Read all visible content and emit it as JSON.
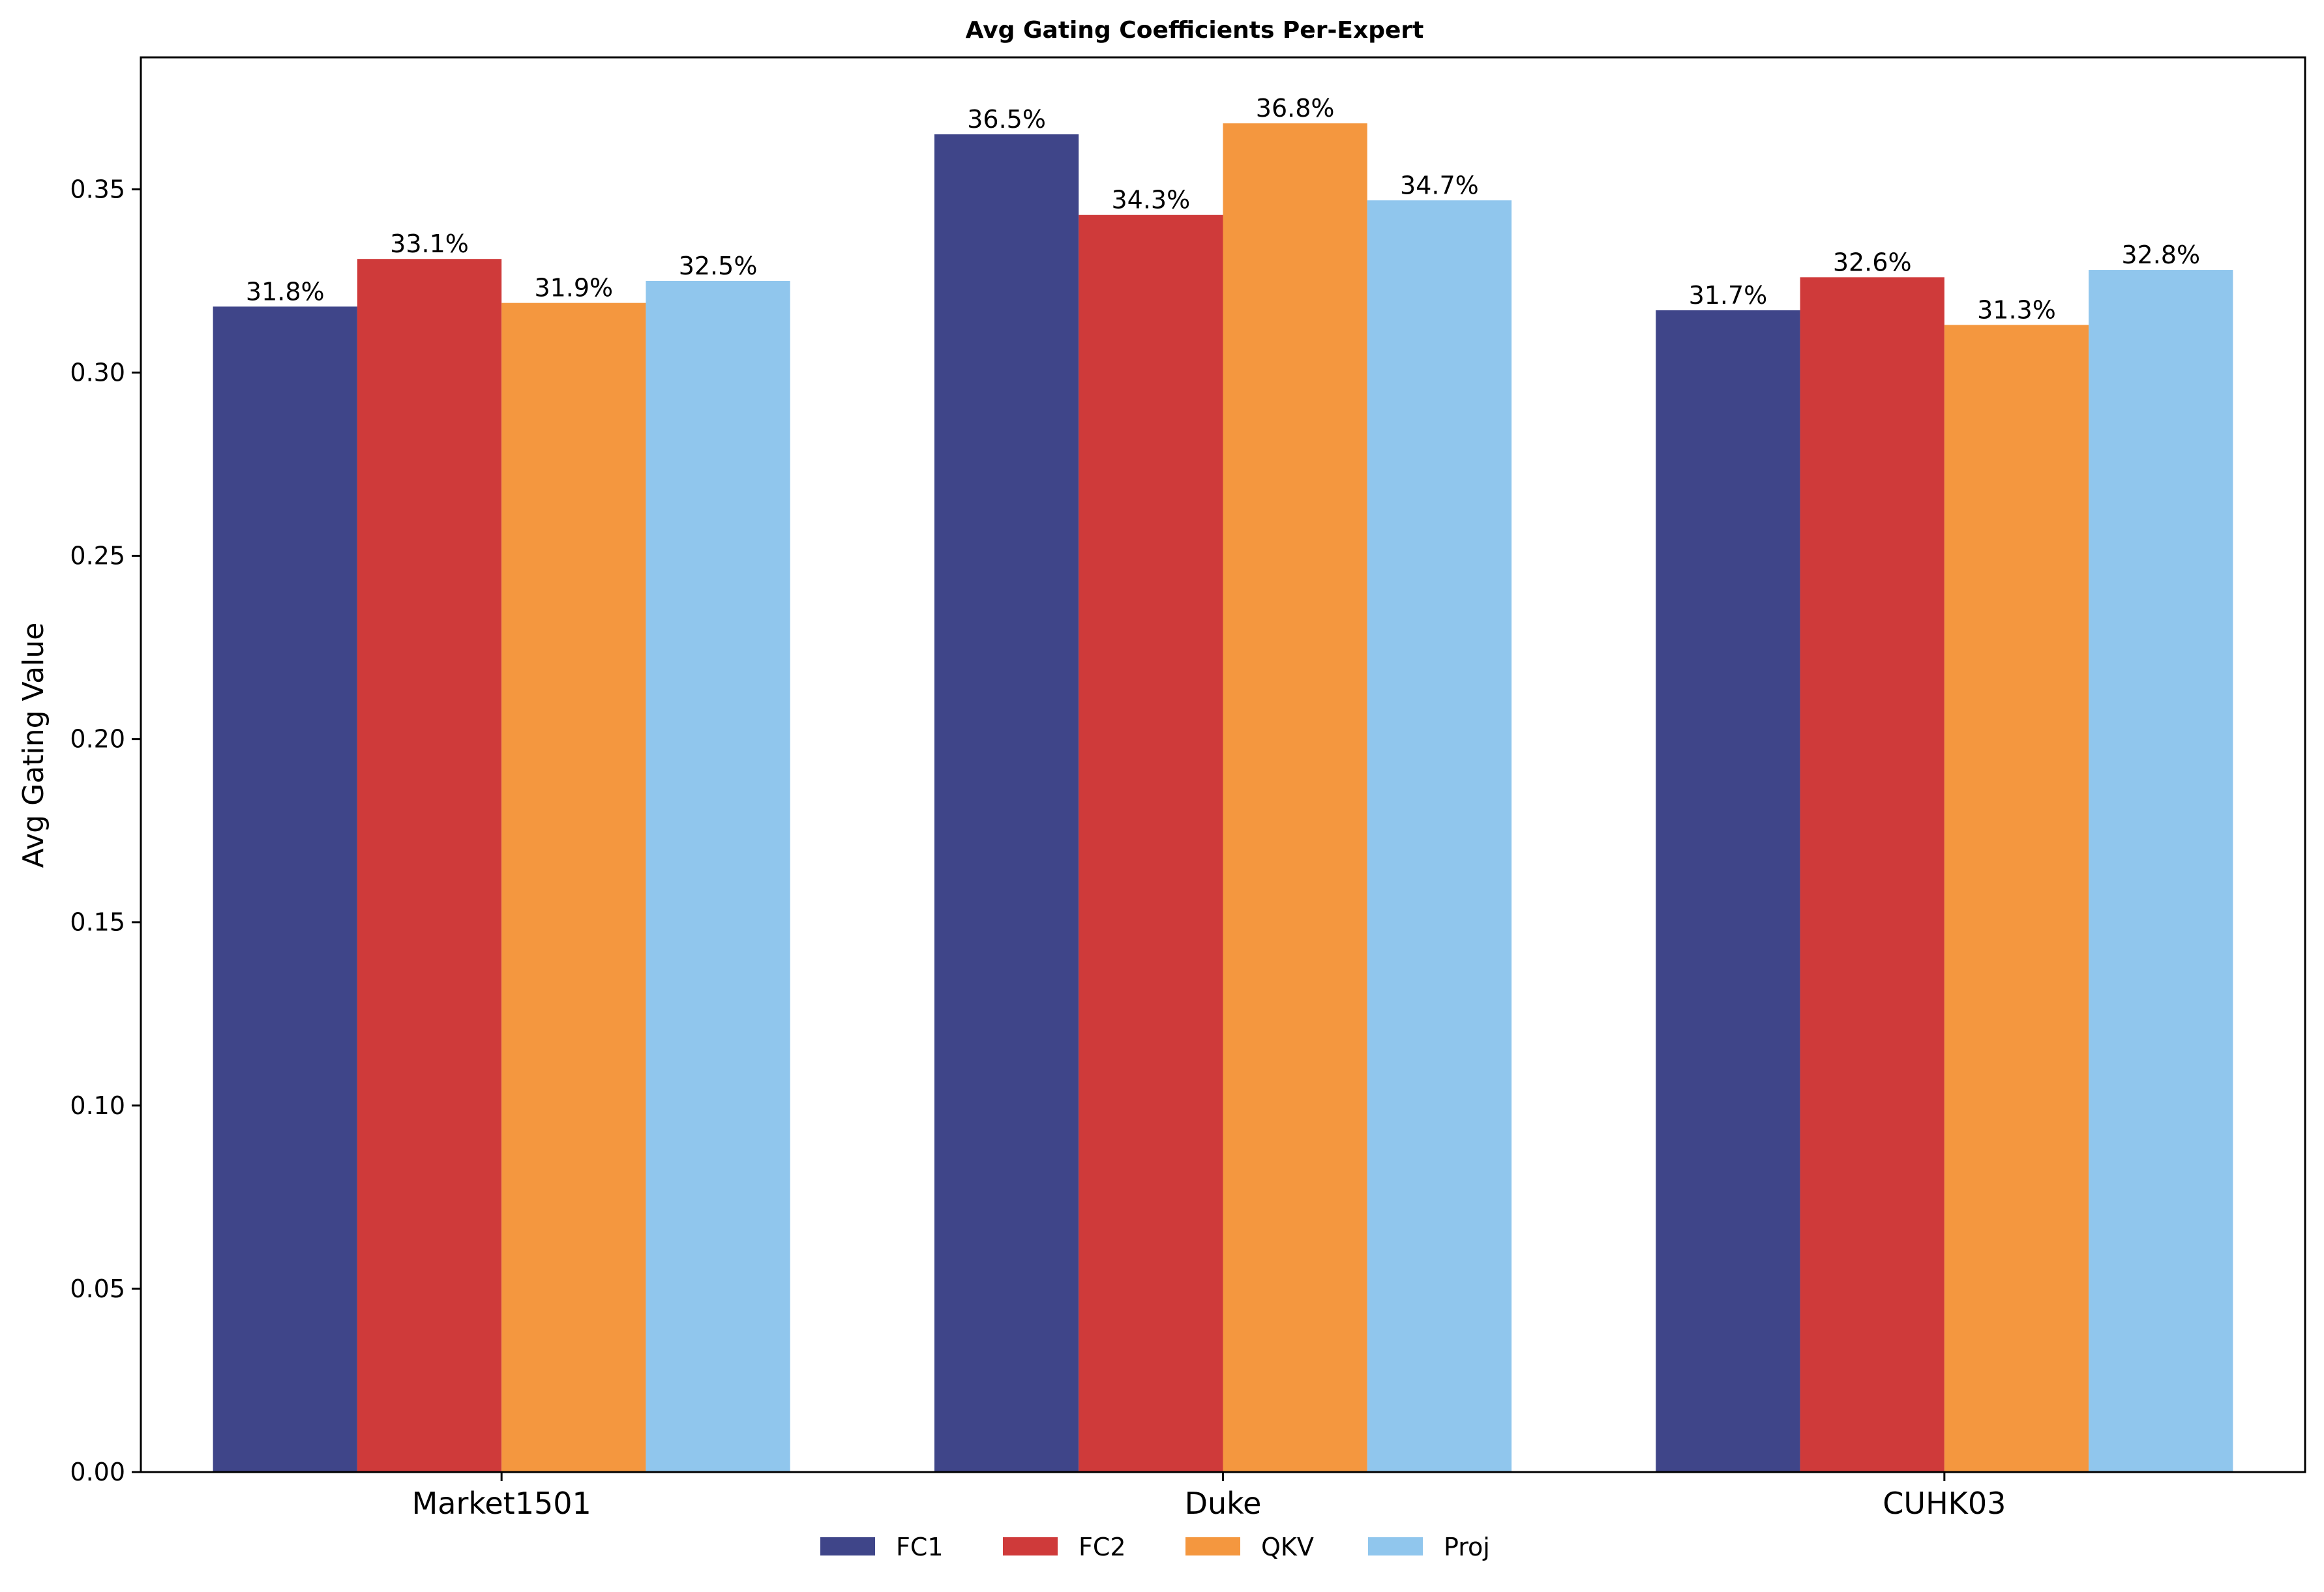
{
  "chart_data": {
    "type": "bar",
    "title": "Avg Gating Coefficients Per-Expert",
    "xlabel": "",
    "ylabel": "Avg Gating Value",
    "categories": [
      "Market1501",
      "Duke",
      "CUHK03"
    ],
    "series": [
      {
        "name": "FC1",
        "color": "#3f4589",
        "values": [
          0.318,
          0.365,
          0.317
        ],
        "labels": [
          "31.8%",
          "36.5%",
          "31.7%"
        ]
      },
      {
        "name": "FC2",
        "color": "#cf3a3a",
        "values": [
          0.331,
          0.343,
          0.326
        ],
        "labels": [
          "33.1%",
          "34.3%",
          "32.6%"
        ]
      },
      {
        "name": "QKV",
        "color": "#f4973f",
        "values": [
          0.319,
          0.368,
          0.313
        ],
        "labels": [
          "31.9%",
          "36.8%",
          "31.3%"
        ]
      },
      {
        "name": "Proj",
        "color": "#90c6ed",
        "values": [
          0.325,
          0.347,
          0.328
        ],
        "labels": [
          "32.5%",
          "34.7%",
          "32.8%"
        ]
      }
    ],
    "ylim": [
      0,
      0.386
    ],
    "yticks": [
      0.0,
      0.05,
      0.1,
      0.15,
      0.2,
      0.25,
      0.3,
      0.35
    ],
    "ytick_labels": [
      "0.00",
      "0.05",
      "0.10",
      "0.15",
      "0.20",
      "0.25",
      "0.30",
      "0.35"
    ],
    "grid": false,
    "legend_position": "bottom-center"
  }
}
